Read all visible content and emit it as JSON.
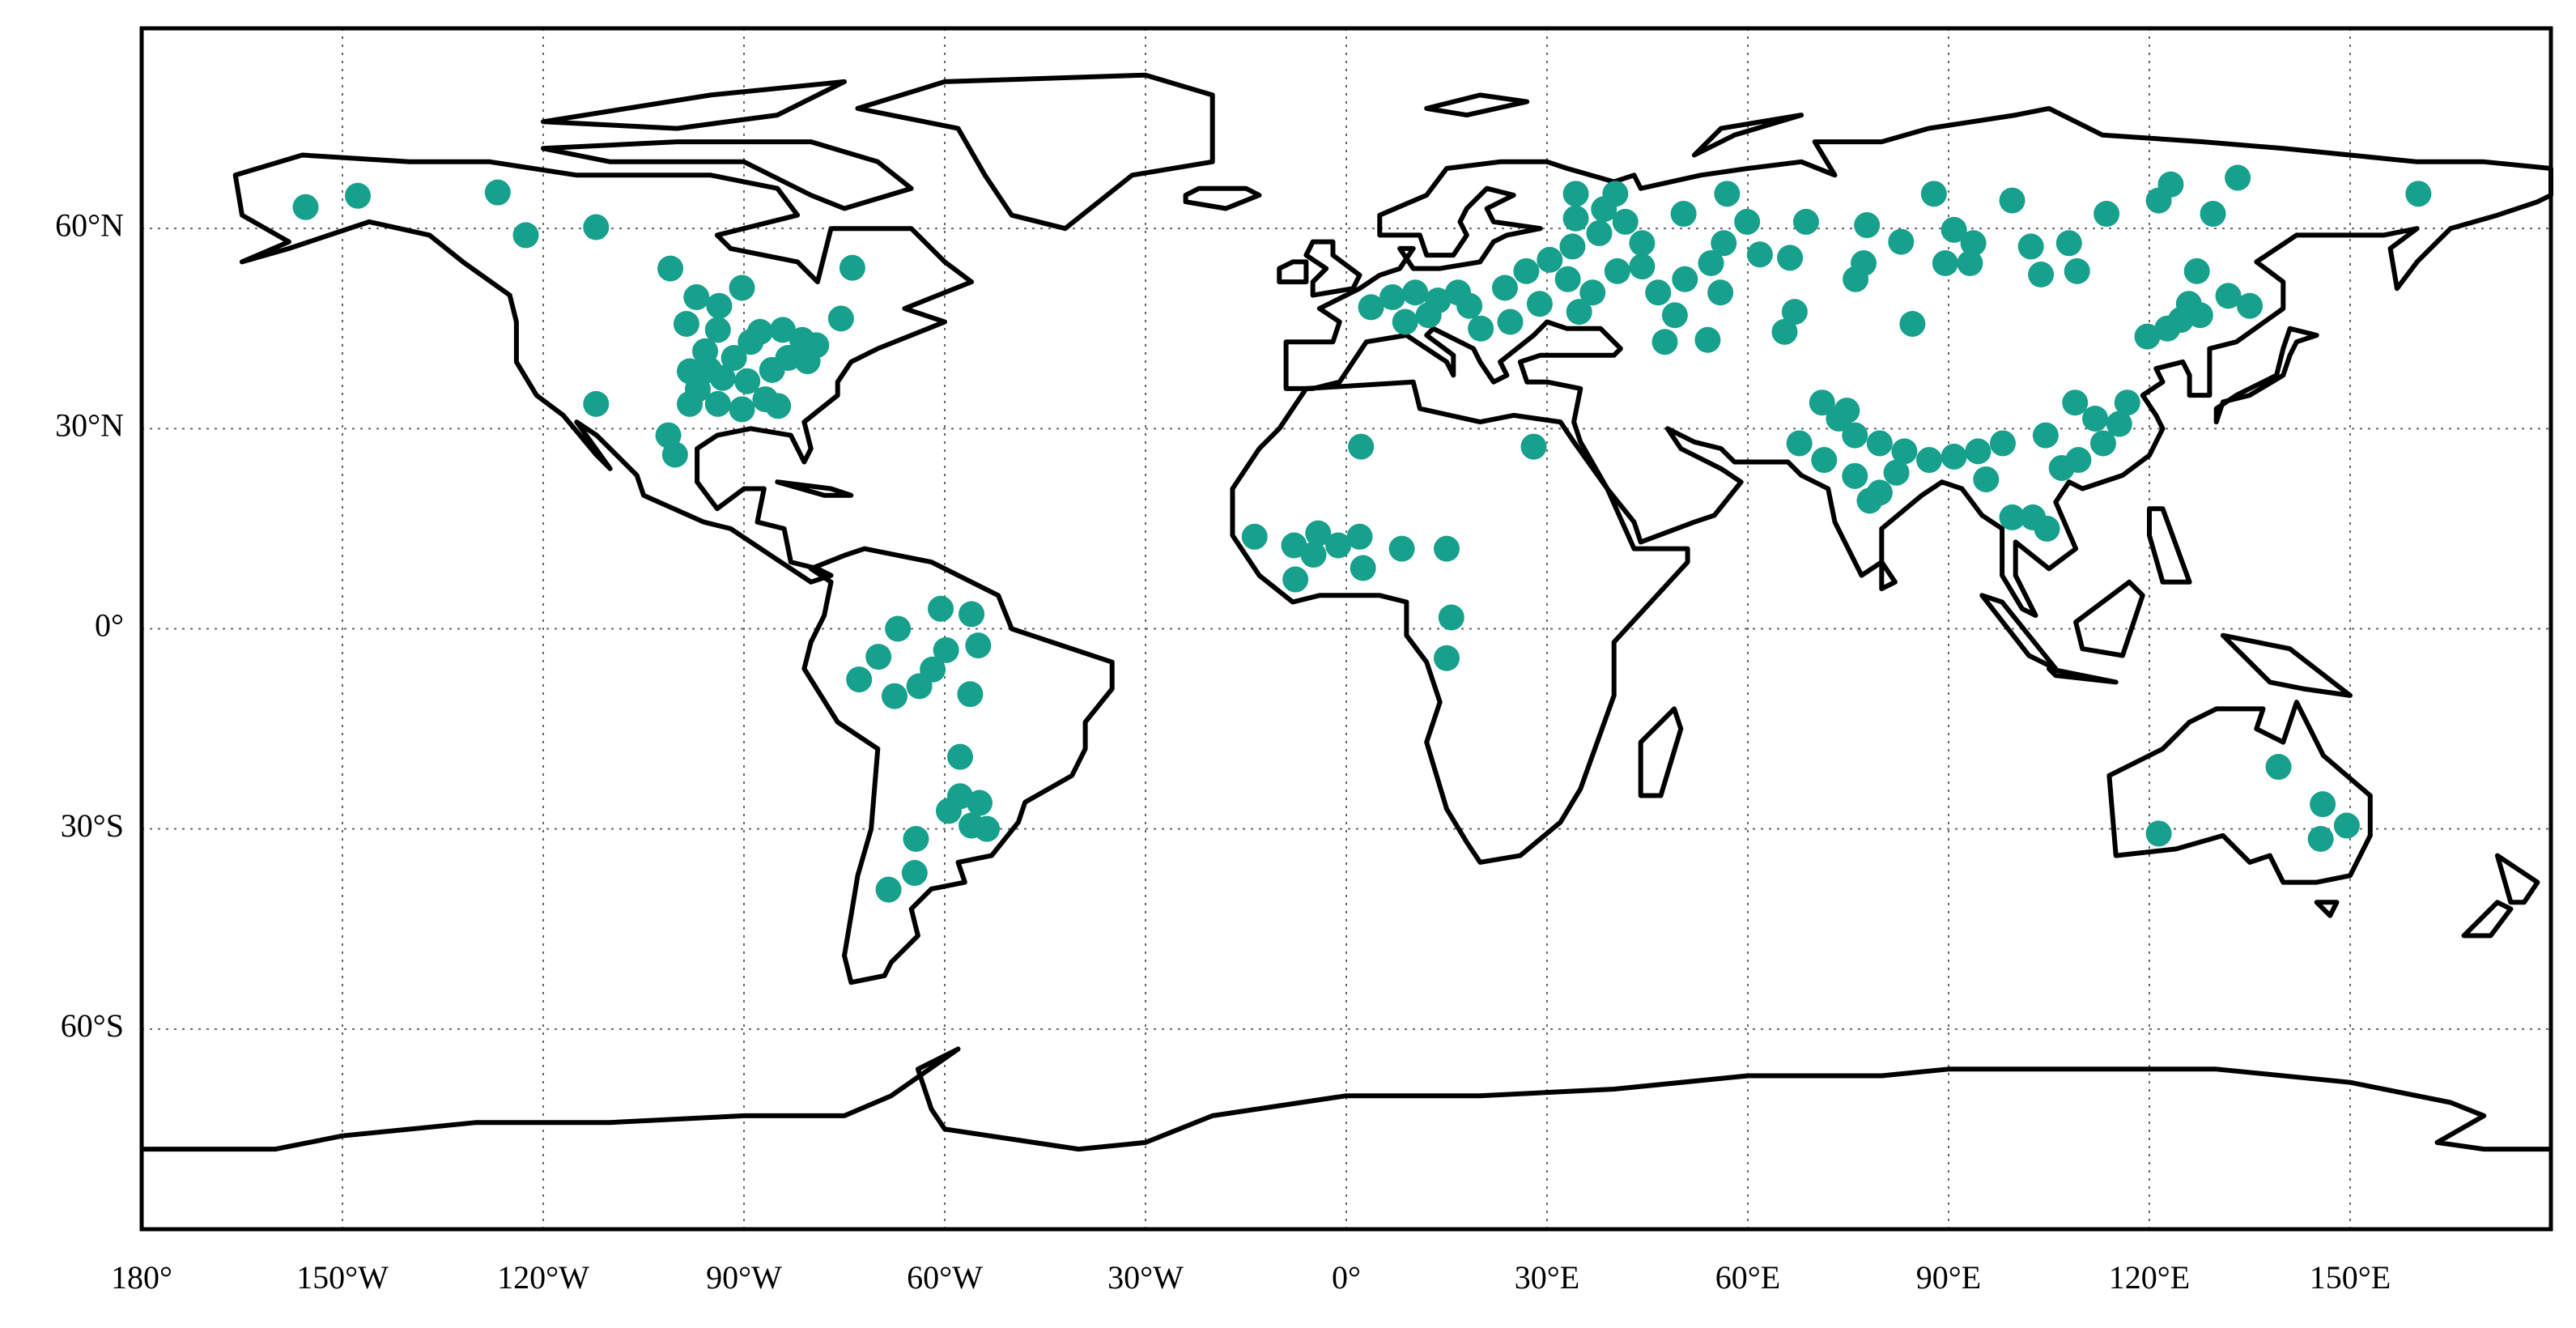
{
  "chart_data": {
    "type": "scatter",
    "color": "#17a08c",
    "grid": true,
    "xlim": [
      -180,
      180
    ],
    "ylim": [
      -90,
      90
    ],
    "xticks": [
      {
        "value": -180,
        "label": "180°"
      },
      {
        "value": -150,
        "label": "150°W"
      },
      {
        "value": -120,
        "label": "120°W"
      },
      {
        "value": -90,
        "label": "90°W"
      },
      {
        "value": -60,
        "label": "60°W"
      },
      {
        "value": -30,
        "label": "30°W"
      },
      {
        "value": 0,
        "label": "0°"
      },
      {
        "value": 30,
        "label": "30°E"
      },
      {
        "value": 60,
        "label": "60°E"
      },
      {
        "value": 90,
        "label": "90°E"
      },
      {
        "value": 120,
        "label": "120°E"
      },
      {
        "value": 150,
        "label": "150°E"
      }
    ],
    "yticks": [
      {
        "value": 60,
        "label": "60°N"
      },
      {
        "value": 30,
        "label": "30°N"
      },
      {
        "value": 0,
        "label": "0°"
      },
      {
        "value": -30,
        "label": "30°S"
      },
      {
        "value": -60,
        "label": "60°S"
      }
    ],
    "x": [
      -155.5,
      -147.7,
      -126.8,
      -122.6,
      -112.1,
      -112.1,
      -101,
      -97.1,
      -93.7,
      -90.3,
      -98.6,
      -93.9,
      -89,
      -95.8,
      -91.5,
      -87.6,
      -84.2,
      -81.3,
      -79.2,
      -83.4,
      -80.5,
      -75.5,
      -73.8,
      -85.8,
      -89.5,
      -93.2,
      -96.9,
      -98.1,
      -93.9,
      -90.3,
      -86.8,
      -84.9,
      -101.3,
      -100.3,
      -98.1,
      -95.2,
      -60.6,
      -56,
      -67,
      -55,
      -72.8,
      -69.9,
      -67.5,
      -63.8,
      -61.8,
      -59.8,
      -56.2,
      -57.7,
      -57.7,
      -54.8,
      -59.4,
      -56,
      -53.7,
      -64.3,
      -64.5,
      -68.4,
      -13.7,
      2.2,
      28,
      -7.8,
      -4.2,
      -1.2,
      2,
      -4.9,
      2.5,
      -7.6,
      8.3,
      15,
      15.7,
      15,
      3.7,
      6.9,
      10.3,
      13.7,
      16.7,
      18.4,
      12.3,
      8.8,
      20.1,
      23.7,
      26.9,
      30.4,
      33.8,
      34.3,
      34.3,
      38.5,
      40.2,
      37.8,
      41.7,
      44.2,
      33.1,
      36.8,
      40.5,
      44.2,
      46.6,
      50.6,
      54.5,
      50.4,
      56.4,
      56.9,
      61.8,
      59.9,
      66.3,
      68.7,
      67,
      65.5,
      49.1,
      54,
      47.6,
      55.9,
      28.9,
      24.5,
      34.8,
      77.8,
      77.3,
      76.1,
      82.9,
      84.6,
      87.8,
      90.8,
      93.2,
      89.5,
      93.7,
      99.5,
      102.3,
      103.8,
      108,
      109.2,
      113.6,
      121.4,
      123.2,
      129.5,
      133.2,
      160.2,
      119.7,
      122.7,
      125.9,
      127.1,
      131.8,
      135,
      124.7,
      127.6,
      71.1,
      73.6,
      76,
      79.7,
      83.4,
      87.1,
      90.8,
      94.4,
      98.1,
      76,
      79.7,
      82.2,
      78.2,
      67.7,
      71.4,
      74.8,
      95.6,
      104.5,
      108.9,
      111.9,
      115.5,
      113.1,
      109.4,
      116.7,
      106.9,
      99.5,
      102.6,
      104.7,
      139.3,
      145.9,
      149.5,
      145.6,
      121.4
    ],
    "y": [
      63.2,
      64.9,
      65.4,
      59.0,
      60.2,
      33.7,
      54,
      49.7,
      48.4,
      51.1,
      45.7,
      44.8,
      43,
      41.6,
      40.6,
      44.5,
      44.8,
      43.3,
      42.5,
      40.6,
      40.1,
      46.5,
      54.1,
      38.8,
      37.1,
      37.6,
      35.9,
      33.7,
      33.7,
      32.9,
      34.4,
      33.4,
      29.0,
      26.1,
      38.6,
      38.8,
      3.0,
      2.2,
      0,
      -2.5,
      -7.6,
      -4.2,
      -10.1,
      -8.6,
      -6.1,
      -3.2,
      -9.8,
      -19.2,
      -25.1,
      -26.1,
      -27.3,
      -29.5,
      -30,
      -31.5,
      -36.6,
      -39.1,
      13.8,
      27.3,
      27.3,
      12.5,
      14.3,
      12.5,
      13.8,
      11.1,
      9.1,
      7.4,
      12,
      12,
      1.7,
      -4.4,
      48.2,
      49.7,
      50.4,
      49.2,
      50.4,
      48.4,
      47,
      46,
      45,
      51.1,
      53.6,
      55.3,
      57.3,
      65.2,
      61.5,
      62.9,
      65.2,
      59.3,
      61,
      57.8,
      52.4,
      50.4,
      53.6,
      54.3,
      50.4,
      52.4,
      54.8,
      62.2,
      57.8,
      65.2,
      56.1,
      61,
      55.6,
      61,
      47.5,
      44.5,
      47,
      43.3,
      43,
      50.4,
      48.7,
      46,
      47.5,
      60.5,
      54.8,
      52.4,
      58,
      45.7,
      65.2,
      59.8,
      54.8,
      54.8,
      57.8,
      64.2,
      57.3,
      53.1,
      57.8,
      53.6,
      62.2,
      64.2,
      66.6,
      62.2,
      67.6,
      65.2,
      43.8,
      45,
      48.7,
      53.6,
      49.9,
      48.4,
      46.3,
      47,
      33.9,
      31.5,
      29,
      27.8,
      26.6,
      25.3,
      25.8,
      26.6,
      27.8,
      22.9,
      20.4,
      23.4,
      19.2,
      27.8,
      25.3,
      32.7,
      22.4,
      29,
      33.9,
      31.5,
      30.7,
      27.8,
      25.3,
      33.9,
      24.1,
      16.7,
      16.7,
      15,
      -20.7,
      -26.3,
      -29.5,
      -31.5,
      -30.7
    ]
  }
}
